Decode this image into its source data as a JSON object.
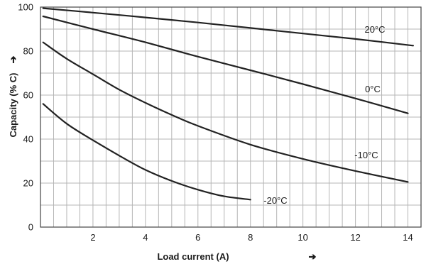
{
  "chart_data": {
    "type": "line",
    "xlabel": "Load current (A)",
    "ylabel": "Capacity (% C)",
    "x_arrow": "➔",
    "y_arrow": "➔",
    "xlim": [
      0,
      14.5
    ],
    "ylim": [
      0,
      100
    ],
    "x_ticks": [
      2,
      4,
      6,
      8,
      10,
      12,
      14
    ],
    "y_ticks": [
      0,
      20,
      40,
      60,
      80,
      100
    ],
    "x_grid_step": 0.5,
    "y_grid_step": 10,
    "grid": true,
    "series": [
      {
        "name": "20°C",
        "x": [
          0.1,
          2,
          4,
          6,
          8,
          10,
          12,
          14.2
        ],
        "y": [
          99.5,
          97.5,
          95.3,
          93,
          90.5,
          88,
          85.5,
          82.5
        ]
      },
      {
        "name": "0°C",
        "x": [
          0.1,
          2,
          4,
          6,
          8,
          10,
          12,
          14
        ],
        "y": [
          95.8,
          90,
          84,
          77.5,
          71.3,
          65,
          58.5,
          51.7
        ]
      },
      {
        "name": "-10°C",
        "x": [
          0.1,
          1,
          2,
          3,
          4,
          5,
          6,
          8,
          10,
          12,
          14
        ],
        "y": [
          84,
          76.5,
          69.5,
          62.5,
          56.5,
          51,
          46,
          37.5,
          31,
          25.5,
          20.5
        ]
      },
      {
        "name": "-20°C",
        "x": [
          0.1,
          1,
          2,
          3,
          4,
          5,
          6,
          7,
          8
        ],
        "y": [
          56,
          47,
          39.5,
          32.5,
          26,
          21,
          17,
          14,
          12.5
        ]
      }
    ]
  }
}
